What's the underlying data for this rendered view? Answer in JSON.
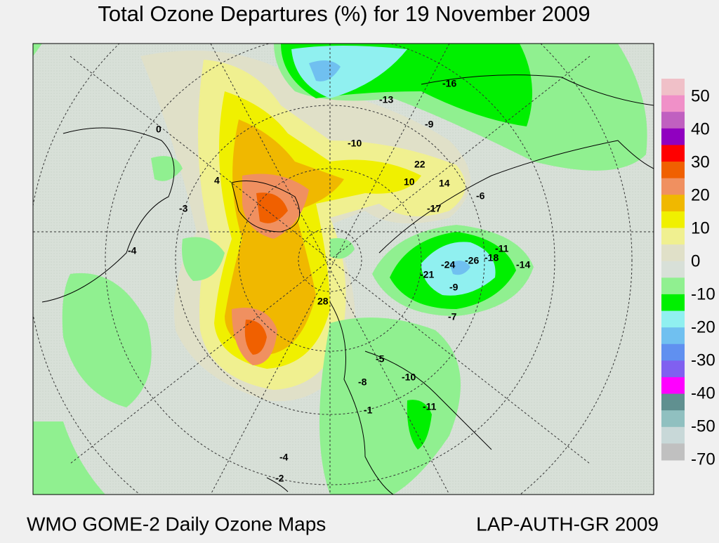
{
  "header": {
    "title": "Total Ozone Departures (%) for 19 November 2009"
  },
  "footer": {
    "left": "WMO GOME-2 Daily Ozone Maps",
    "right": "LAP-AUTH-GR 2009"
  },
  "legend": {
    "colors": [
      "#f0c0c8",
      "#f090c8",
      "#c060c0",
      "#9000c0",
      "#ff0000",
      "#f06000",
      "#f09060",
      "#f0b800",
      "#f0f000",
      "#f0f090",
      "#e0e0c8",
      "#d8e0d8",
      "#90f090",
      "#00f000",
      "#90f0f0",
      "#70c0f0",
      "#6090f0",
      "#8060f0",
      "#ff00ff",
      "#609090",
      "#90c0c0",
      "#c8d8d8",
      "#c0c0c0"
    ],
    "labels": [
      50,
      40,
      30,
      20,
      10,
      0,
      -10,
      -20,
      -30,
      -40,
      -50,
      -70
    ]
  },
  "map_labels": [
    "-16",
    "-13",
    "-9",
    "-10",
    "22",
    "10",
    "14",
    "-17",
    "-6",
    "0",
    "4",
    "-3",
    "-4",
    "28",
    "-21",
    "-24",
    "-26",
    "-18",
    "-11",
    "-14",
    "-9",
    "-7",
    "-5",
    "-10",
    "-8",
    "-11",
    "-1",
    "-4",
    "-2"
  ]
}
